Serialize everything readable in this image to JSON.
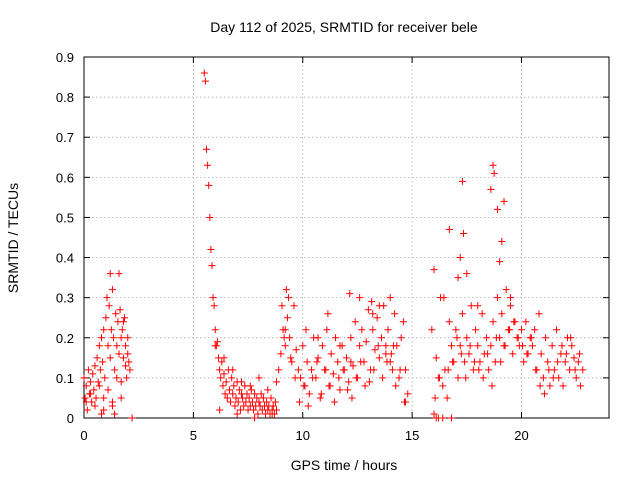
{
  "chart_data": {
    "type": "scatter",
    "title": "Day 112 of 2025, SRMTID for receiver bele",
    "xlabel": "GPS time / hours",
    "ylabel": "SRMTID / TECUs",
    "xlim": [
      0,
      24
    ],
    "ylim": [
      0,
      0.9
    ],
    "xticks": [
      0,
      5,
      10,
      15,
      20
    ],
    "yticks": [
      0,
      0.1,
      0.2,
      0.3,
      0.4,
      0.5,
      0.6,
      0.7,
      0.8,
      0.9
    ],
    "xtick_labels": [
      "0",
      "5",
      "10",
      "15",
      "20"
    ],
    "ytick_labels": [
      "0",
      "0.1",
      "0.2",
      "0.3",
      "0.4",
      "0.5",
      "0.6",
      "0.7",
      "0.8",
      "0.9"
    ],
    "grid": true,
    "marker": "+",
    "color": "#ff0000",
    "series": [
      {
        "name": "SRMTID",
        "x": [
          0.0,
          0.05,
          0.1,
          0.15,
          0.2,
          0.25,
          0.3,
          0.35,
          0.4,
          0.45,
          0.5,
          0.55,
          0.6,
          0.65,
          0.7,
          0.75,
          0.8,
          0.85,
          0.9,
          0.95,
          1.0,
          1.05,
          1.1,
          1.15,
          1.2,
          1.25,
          1.3,
          1.35,
          1.4,
          1.45,
          1.5,
          1.55,
          1.6,
          1.65,
          1.7,
          1.75,
          1.8,
          1.85,
          1.9,
          1.95,
          2.0,
          2.05,
          2.1,
          0.1,
          0.3,
          0.5,
          0.7,
          0.9,
          1.1,
          1.3,
          1.5,
          1.7,
          1.9,
          2.0,
          1.2,
          1.6,
          1.8,
          1.4,
          0.8,
          1.7,
          1.3,
          0.9,
          2.2,
          5.5,
          5.55,
          5.6,
          5.65,
          5.7,
          5.75,
          5.8,
          5.85,
          5.9,
          5.95,
          6.0,
          6.05,
          6.1,
          6.15,
          6.2,
          6.25,
          6.3,
          6.35,
          6.4,
          6.45,
          6.5,
          6.55,
          6.6,
          6.65,
          6.7,
          6.75,
          6.8,
          6.85,
          6.9,
          6.95,
          7.0,
          7.05,
          7.1,
          7.15,
          7.2,
          7.25,
          7.3,
          7.35,
          7.4,
          7.45,
          7.5,
          7.55,
          7.6,
          7.65,
          7.7,
          7.75,
          7.8,
          7.85,
          7.9,
          7.95,
          8.0,
          8.05,
          8.1,
          8.15,
          8.2,
          8.25,
          8.3,
          8.35,
          8.4,
          8.45,
          8.5,
          8.55,
          8.6,
          8.65,
          8.7,
          8.75,
          8.8,
          6.0,
          6.4,
          6.8,
          7.2,
          7.6,
          8.0,
          8.4,
          8.8,
          6.2,
          7.0,
          7.8,
          8.6,
          8.9,
          9.0,
          9.1,
          9.2,
          9.3,
          9.4,
          9.5,
          9.6,
          9.7,
          9.8,
          9.9,
          10.0,
          10.1,
          10.2,
          10.3,
          10.4,
          10.5,
          10.6,
          10.7,
          10.8,
          10.9,
          11.0,
          11.1,
          11.2,
          11.3,
          11.4,
          11.5,
          11.6,
          11.7,
          11.8,
          11.9,
          12.0,
          12.1,
          12.2,
          12.3,
          12.4,
          12.5,
          12.6,
          12.7,
          12.8,
          12.9,
          13.0,
          13.1,
          13.2,
          13.3,
          13.4,
          13.5,
          13.6,
          13.7,
          13.8,
          13.9,
          14.0,
          14.1,
          14.2,
          14.3,
          14.4,
          14.5,
          14.6,
          14.7,
          14.8,
          9.05,
          9.25,
          9.45,
          9.65,
          9.85,
          10.05,
          10.25,
          10.45,
          10.65,
          10.85,
          11.05,
          11.25,
          11.45,
          11.65,
          11.85,
          12.05,
          12.25,
          12.45,
          12.65,
          12.85,
          13.05,
          13.25,
          13.45,
          13.65,
          13.85,
          14.05,
          14.25,
          14.45,
          14.65,
          9.35,
          9.15,
          10.15,
          11.15,
          12.15,
          13.15,
          14.15,
          12.6,
          13.5,
          14.0,
          13.2,
          9.2,
          10.7,
          11.7,
          12.2,
          13.8,
          14.7,
          15.9,
          16.0,
          16.1,
          16.2,
          16.3,
          16.4,
          16.5,
          16.6,
          16.7,
          16.8,
          16.9,
          17.0,
          17.1,
          17.2,
          17.3,
          17.4,
          17.5,
          17.6,
          17.7,
          17.8,
          17.9,
          18.0,
          18.1,
          18.2,
          18.3,
          18.4,
          18.5,
          18.6,
          18.7,
          18.8,
          18.9,
          19.0,
          19.1,
          19.2,
          19.3,
          19.4,
          19.5,
          19.6,
          19.7,
          19.8,
          19.9,
          20.0,
          20.1,
          20.2,
          20.3,
          20.4,
          20.5,
          20.6,
          20.7,
          20.8,
          20.9,
          21.0,
          21.1,
          21.2,
          21.3,
          21.4,
          21.5,
          21.6,
          21.7,
          21.8,
          21.9,
          22.0,
          22.1,
          22.2,
          22.3,
          22.4,
          22.5,
          22.6,
          22.7,
          22.8,
          16.05,
          16.25,
          16.45,
          16.65,
          16.85,
          17.05,
          17.25,
          17.45,
          17.65,
          17.85,
          18.05,
          18.25,
          18.45,
          18.65,
          18.85,
          19.05,
          19.25,
          19.45,
          19.65,
          19.85,
          20.05,
          20.25,
          20.45,
          20.65,
          20.85,
          21.05,
          21.25,
          21.45,
          21.65,
          21.85,
          22.05,
          22.25,
          22.45,
          22.65,
          16.7,
          17.3,
          17.35,
          18.7,
          18.75,
          18.6,
          18.9,
          19.1,
          19.2,
          17.1,
          19.0,
          18.0,
          19.5,
          16.0,
          16.2,
          16.4,
          16.8,
          16.1,
          17.2,
          17.5
        ],
        "y": [
          0.1,
          0.05,
          0.08,
          0.02,
          0.12,
          0.06,
          0.09,
          0.04,
          0.11,
          0.07,
          0.13,
          0.05,
          0.15,
          0.09,
          0.18,
          0.12,
          0.2,
          0.14,
          0.22,
          0.1,
          0.25,
          0.3,
          0.18,
          0.28,
          0.15,
          0.22,
          0.32,
          0.2,
          0.12,
          0.26,
          0.18,
          0.24,
          0.16,
          0.27,
          0.2,
          0.22,
          0.15,
          0.25,
          0.18,
          0.1,
          0.2,
          0.14,
          0.12,
          0.04,
          0.06,
          0.03,
          0.08,
          0.05,
          0.07,
          0.04,
          0.1,
          0.09,
          0.13,
          0.16,
          0.36,
          0.36,
          0.24,
          0.01,
          0.01,
          0.05,
          0.03,
          0.02,
          0.0,
          0.86,
          0.84,
          0.67,
          0.63,
          0.58,
          0.5,
          0.42,
          0.38,
          0.3,
          0.28,
          0.22,
          0.18,
          0.19,
          0.15,
          0.12,
          0.1,
          0.14,
          0.08,
          0.11,
          0.06,
          0.09,
          0.05,
          0.12,
          0.07,
          0.04,
          0.1,
          0.06,
          0.08,
          0.03,
          0.05,
          0.09,
          0.04,
          0.07,
          0.02,
          0.06,
          0.05,
          0.03,
          0.08,
          0.04,
          0.06,
          0.02,
          0.05,
          0.03,
          0.07,
          0.04,
          0.02,
          0.06,
          0.03,
          0.05,
          0.01,
          0.04,
          0.03,
          0.06,
          0.02,
          0.05,
          0.03,
          0.01,
          0.04,
          0.02,
          0.03,
          0.01,
          0.05,
          0.02,
          0.03,
          0.01,
          0.04,
          0.02,
          0.18,
          0.15,
          0.12,
          0.09,
          0.08,
          0.1,
          0.07,
          0.09,
          0.02,
          0.01,
          0.0,
          0.01,
          0.12,
          0.16,
          0.22,
          0.18,
          0.25,
          0.2,
          0.14,
          0.28,
          0.17,
          0.12,
          0.1,
          0.18,
          0.08,
          0.14,
          0.06,
          0.12,
          0.2,
          0.1,
          0.15,
          0.05,
          0.18,
          0.12,
          0.22,
          0.08,
          0.16,
          0.11,
          0.2,
          0.14,
          0.07,
          0.18,
          0.12,
          0.15,
          0.09,
          0.2,
          0.13,
          0.24,
          0.1,
          0.18,
          0.22,
          0.14,
          0.19,
          0.27,
          0.12,
          0.22,
          0.17,
          0.25,
          0.15,
          0.2,
          0.28,
          0.18,
          0.22,
          0.14,
          0.12,
          0.26,
          0.18,
          0.1,
          0.2,
          0.24,
          0.12,
          0.06,
          0.28,
          0.32,
          0.15,
          0.1,
          0.04,
          0.08,
          0.03,
          0.1,
          0.14,
          0.06,
          0.12,
          0.08,
          0.04,
          0.1,
          0.12,
          0.07,
          0.05,
          0.1,
          0.14,
          0.08,
          0.09,
          0.12,
          0.18,
          0.1,
          0.14,
          0.16,
          0.08,
          0.12,
          0.04,
          0.3,
          0.2,
          0.22,
          0.26,
          0.31,
          0.29,
          0.18,
          0.3,
          0.28,
          0.3,
          0.26,
          0.22,
          0.2,
          0.18,
          0.14,
          0.16,
          0.04,
          0.22,
          0.37,
          0.15,
          0.1,
          0.3,
          0.08,
          0.12,
          0.05,
          0.24,
          0.18,
          0.14,
          0.22,
          0.1,
          0.18,
          0.26,
          0.14,
          0.2,
          0.16,
          0.28,
          0.12,
          0.22,
          0.18,
          0.14,
          0.26,
          0.16,
          0.2,
          0.12,
          0.18,
          0.24,
          0.14,
          0.3,
          0.2,
          0.26,
          0.18,
          0.32,
          0.22,
          0.28,
          0.16,
          0.24,
          0.2,
          0.18,
          0.22,
          0.14,
          0.24,
          0.16,
          0.2,
          0.18,
          0.22,
          0.12,
          0.26,
          0.16,
          0.1,
          0.2,
          0.14,
          0.08,
          0.18,
          0.12,
          0.22,
          0.1,
          0.16,
          0.08,
          0.14,
          0.2,
          0.12,
          0.18,
          0.15,
          0.1,
          0.14,
          0.08,
          0.12,
          0.05,
          0.1,
          0.3,
          0.12,
          0.14,
          0.2,
          0.16,
          0.1,
          0.18,
          0.14,
          0.12,
          0.1,
          0.16,
          0.08,
          0.2,
          0.14,
          0.18,
          0.22,
          0.24,
          0.2,
          0.18,
          0.16,
          0.2,
          0.12,
          0.08,
          0.06,
          0.12,
          0.1,
          0.14,
          0.18,
          0.16,
          0.2,
          0.12,
          0.16,
          0.47,
          0.59,
          0.46,
          0.63,
          0.61,
          0.57,
          0.52,
          0.44,
          0.54,
          0.35,
          0.39,
          0.28,
          0.3,
          0.01,
          0.0,
          0.0,
          0.0,
          0.0,
          0.4,
          0.36
        ]
      }
    ]
  }
}
